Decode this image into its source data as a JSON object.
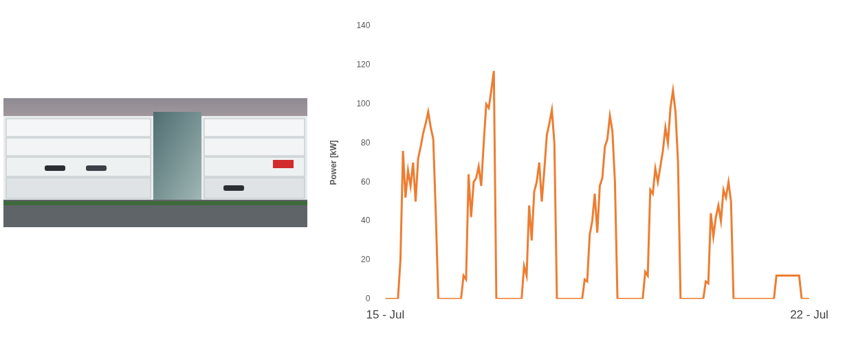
{
  "chart_data": {
    "type": "line",
    "y_label": "Power [kW]",
    "categories": [
      "15 - Jul",
      null,
      null,
      null,
      null,
      null,
      null,
      null,
      null,
      null,
      null,
      null,
      null,
      null,
      null,
      null,
      null,
      null,
      null,
      null,
      null,
      null,
      null,
      null,
      null,
      null,
      null,
      null,
      null,
      null,
      null,
      null,
      null,
      null,
      null,
      null,
      null,
      null,
      null,
      null,
      null,
      null,
      null,
      null,
      null,
      null,
      null,
      null,
      null,
      null,
      null,
      null,
      null,
      null,
      null,
      null,
      null,
      null,
      null,
      null,
      null,
      null,
      null,
      null,
      null,
      null,
      null,
      null,
      null,
      null,
      null,
      null,
      null,
      null,
      null,
      null,
      null,
      null,
      null,
      null,
      null,
      null,
      null,
      null,
      null,
      null,
      null,
      null,
      null,
      null,
      null,
      null,
      null,
      null,
      null,
      null,
      null,
      null,
      null,
      null,
      null,
      null,
      null,
      null,
      null,
      null,
      null,
      null,
      null,
      null,
      null,
      null,
      null,
      null,
      null,
      null,
      null,
      null,
      null,
      null,
      null,
      null,
      null,
      null,
      null,
      null,
      null,
      null,
      null,
      null,
      null,
      null,
      null,
      null,
      null,
      null,
      null,
      null,
      null,
      null,
      null,
      null,
      null,
      null,
      null,
      null,
      null,
      null,
      null,
      null,
      null,
      null,
      null,
      null,
      null,
      null,
      null,
      null,
      null,
      null,
      null,
      null,
      null,
      null,
      null,
      null,
      null,
      null,
      "22 - Jul"
    ],
    "values": [
      0,
      0,
      0,
      0,
      0,
      0,
      20,
      76,
      52,
      66,
      58,
      70,
      50,
      72,
      78,
      85,
      90,
      96,
      88,
      82,
      44,
      0,
      0,
      0,
      0,
      0,
      0,
      0,
      0,
      0,
      0,
      12,
      10,
      64,
      42,
      60,
      62,
      68,
      58,
      80,
      100,
      98,
      107,
      117,
      0,
      0,
      0,
      0,
      0,
      0,
      0,
      0,
      0,
      0,
      0,
      17,
      12,
      48,
      30,
      55,
      60,
      70,
      50,
      66,
      84,
      90,
      97,
      80,
      0,
      0,
      0,
      0,
      0,
      0,
      0,
      0,
      0,
      0,
      0,
      10,
      9,
      33,
      40,
      54,
      34,
      58,
      62,
      78,
      82,
      94,
      86,
      60,
      0,
      0,
      0,
      0,
      0,
      0,
      0,
      0,
      0,
      0,
      0,
      14,
      12,
      56,
      54,
      67,
      60,
      68,
      76,
      88,
      80,
      98,
      107,
      96,
      70,
      0,
      0,
      0,
      0,
      0,
      0,
      0,
      0,
      0,
      0,
      9,
      8,
      44,
      32,
      42,
      48,
      40,
      56,
      52,
      60,
      50,
      0,
      0,
      0,
      0,
      0,
      0,
      0,
      0,
      0,
      0,
      0,
      0,
      0,
      0,
      0,
      0,
      0,
      12,
      12,
      12,
      12,
      12,
      12,
      12,
      12,
      12,
      12,
      0,
      0,
      0,
      0
    ],
    "color": "#ed7d31",
    "ylim": [
      0,
      140
    ],
    "yticks": [
      0,
      20,
      40,
      60,
      80,
      100,
      120,
      140
    ],
    "grid": false
  }
}
